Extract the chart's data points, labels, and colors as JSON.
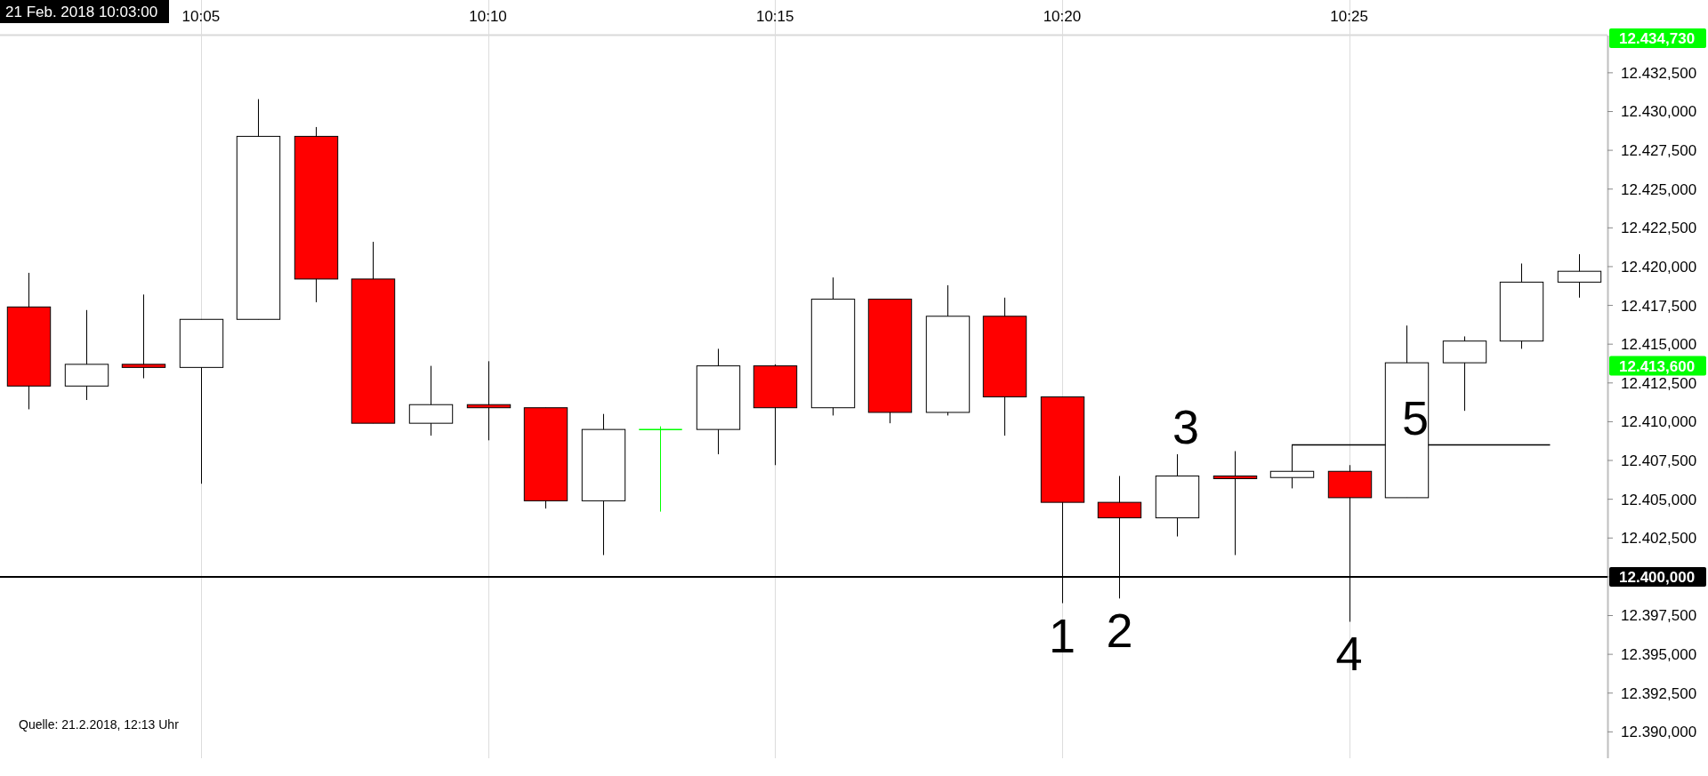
{
  "chart_data": {
    "type": "candlestick",
    "x": [
      "2018-02-21T10:02",
      "2018-02-21T10:03",
      "2018-02-21T10:04",
      "2018-02-21T10:05",
      "2018-02-21T10:06",
      "2018-02-21T10:07",
      "2018-02-21T10:08",
      "2018-02-21T10:09",
      "2018-02-21T10:10",
      "2018-02-21T10:11",
      "2018-02-21T10:12",
      "2018-02-21T10:13",
      "2018-02-21T10:14",
      "2018-02-21T10:15",
      "2018-02-21T10:16",
      "2018-02-21T10:17",
      "2018-02-21T10:18",
      "2018-02-21T10:19",
      "2018-02-21T10:20",
      "2018-02-21T10:21",
      "2018-02-21T10:22",
      "2018-02-21T10:23",
      "2018-02-21T10:24",
      "2018-02-21T10:25",
      "2018-02-21T10:26",
      "2018-02-21T10:27",
      "2018-02-21T10:28",
      "2018-02-21T10:29"
    ],
    "ohlc": [
      [
        12417.4,
        12419.6,
        12410.8,
        12412.3
      ],
      [
        12412.3,
        12417.2,
        12411.4,
        12413.7
      ],
      [
        12413.7,
        12418.2,
        12412.8,
        12413.5
      ],
      [
        12413.5,
        12416.6,
        12406.0,
        12416.6
      ],
      [
        12416.6,
        12430.8,
        12416.6,
        12428.4
      ],
      [
        12428.4,
        12429.0,
        12417.7,
        12419.2
      ],
      [
        12419.2,
        12421.6,
        12409.9,
        12409.9
      ],
      [
        12409.9,
        12413.6,
        12409.1,
        12411.1
      ],
      [
        12411.1,
        12413.9,
        12408.8,
        12410.9
      ],
      [
        12410.9,
        12410.9,
        12404.4,
        12404.9
      ],
      [
        12404.9,
        12410.5,
        12401.4,
        12409.5
      ],
      [
        12409.5,
        12409.7,
        12404.2,
        12409.5
      ],
      [
        12409.5,
        12414.7,
        12407.9,
        12413.6
      ],
      [
        12413.6,
        12413.7,
        12407.2,
        12410.9
      ],
      [
        12410.9,
        12419.3,
        12410.4,
        12417.9
      ],
      [
        12417.9,
        12417.9,
        12409.9,
        12410.6
      ],
      [
        12410.6,
        12418.8,
        12410.4,
        12416.8
      ],
      [
        12416.8,
        12418.0,
        12409.1,
        12411.6
      ],
      [
        12411.6,
        12411.6,
        12398.3,
        12404.8
      ],
      [
        12404.8,
        12406.5,
        12398.6,
        12403.8
      ],
      [
        12403.8,
        12407.9,
        12402.6,
        12406.5
      ],
      [
        12406.5,
        12408.1,
        12401.4,
        12406.4
      ],
      [
        12406.4,
        12408.5,
        12405.7,
        12406.8
      ],
      [
        12406.8,
        12407.2,
        12397.1,
        12405.1
      ],
      [
        12405.1,
        12416.2,
        12405.1,
        12413.8
      ],
      [
        12413.8,
        12415.5,
        12410.7,
        12415.2
      ],
      [
        12415.2,
        12420.2,
        12414.7,
        12419.0
      ],
      [
        12419.0,
        12420.8,
        12418.0,
        12419.7
      ]
    ],
    "colors": [
      "#ff0000",
      "#ffffff",
      "#ff0000",
      "#ffffff",
      "#ffffff",
      "#ff0000",
      "#ff0000",
      "#ffffff",
      "#ff0000",
      "#ff0000",
      "#ffffff",
      "#00ff00",
      "#ffffff",
      "#ff0000",
      "#ffffff",
      "#ff0000",
      "#ffffff",
      "#ff0000",
      "#ff0000",
      "#ff0000",
      "#ffffff",
      "#ff0000",
      "#ffffff",
      "#ff0000",
      "#ffffff",
      "#ffffff",
      "#ffffff",
      "#ffffff"
    ],
    "series": [
      {
        "type": "line",
        "x": [
          "2018-02-21T10:24",
          "2018-02-21T10:28:30"
        ],
        "values": [
          12408.5,
          12408.5
        ],
        "color": "#000000"
      }
    ],
    "xlim": [
      "2018-02-21T10:01:30",
      "2018-02-21T10:29:30"
    ],
    "xticks": [
      {
        "value": "2018-02-21T10:05",
        "label": "10:05"
      },
      {
        "value": "2018-02-21T10:10",
        "label": "10:10"
      },
      {
        "value": "2018-02-21T10:15",
        "label": "10:15"
      },
      {
        "value": "2018-02-21T10:20",
        "label": "10:20"
      },
      {
        "value": "2018-02-21T10:25",
        "label": "10:25"
      }
    ],
    "ylim": [
      12388.3,
      12434.9
    ],
    "yticks": [
      {
        "value": 12390,
        "label": "12.390,000"
      },
      {
        "value": 12392.5,
        "label": "12.392,500"
      },
      {
        "value": 12395,
        "label": "12.395,000"
      },
      {
        "value": 12397.5,
        "label": "12.397,500"
      },
      {
        "value": 12400,
        "label": "12.400,000"
      },
      {
        "value": 12402.5,
        "label": "12.402,500"
      },
      {
        "value": 12405,
        "label": "12.405,000"
      },
      {
        "value": 12407.5,
        "label": "12.407,500"
      },
      {
        "value": 12410,
        "label": "12.410,000"
      },
      {
        "value": 12412.5,
        "label": "12.412,500"
      },
      {
        "value": 12415,
        "label": "12.415,000"
      },
      {
        "value": 12417.5,
        "label": "12.417,500"
      },
      {
        "value": 12420,
        "label": "12.420,000"
      },
      {
        "value": 12422.5,
        "label": "12.422,500"
      },
      {
        "value": 12425,
        "label": "12.425,000"
      },
      {
        "value": 12427.5,
        "label": "12.427,500"
      },
      {
        "value": 12430,
        "label": "12.430,000"
      },
      {
        "value": 12432.5,
        "label": "12.432,500"
      }
    ],
    "grid": "x",
    "ref_lines": [
      {
        "axis": "y",
        "value": 12400,
        "label": "12.400,000",
        "color": "#000000"
      }
    ],
    "annotations": [
      "21 Feb. 2018 10:03:00",
      "12.434,730",
      "12.413,600",
      {
        "text": "1",
        "x": "2018-02-21T10:20",
        "y": 12398.3
      },
      {
        "text": "2",
        "x": "2018-02-21T10:21",
        "y": 12398.6
      },
      {
        "text": "3",
        "x": "2018-02-21T10:22",
        "y": 12407.9
      },
      {
        "text": "4",
        "x": "2018-02-21T10:25",
        "y": 12397.1
      },
      {
        "text": "5",
        "x": "2018-02-21T10:26",
        "y": 12408.5
      },
      "Quelle: 21.2.2018, 12:13 Uhr"
    ]
  }
}
